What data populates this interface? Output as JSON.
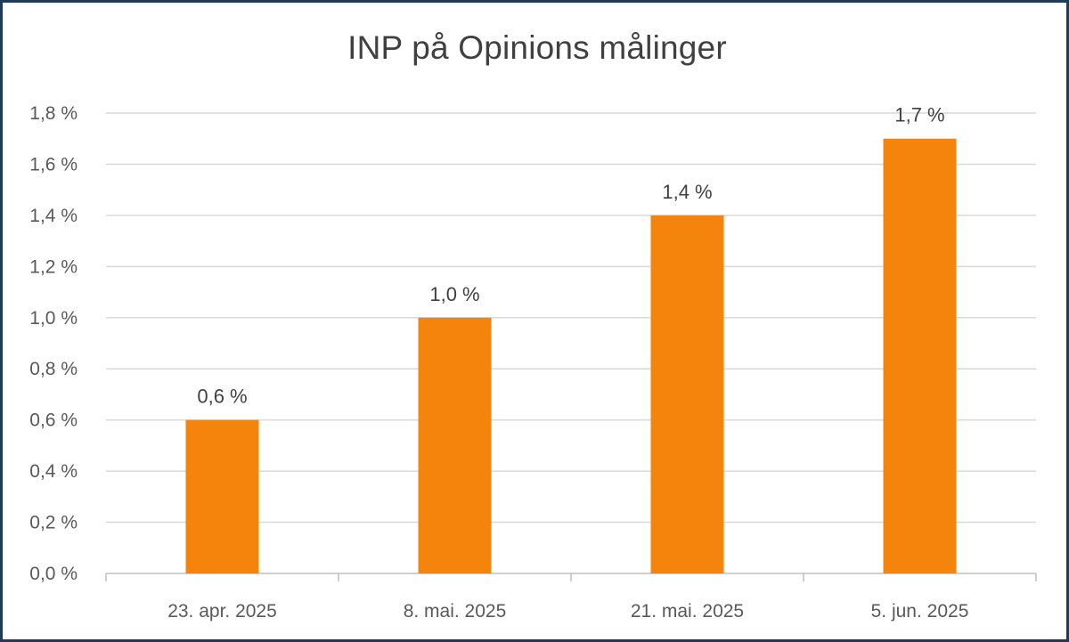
{
  "chart_data": {
    "type": "bar",
    "title": "INP på Opinions målinger",
    "xlabel": "",
    "ylabel": "",
    "categories": [
      "23. apr. 2025",
      "8. mai. 2025",
      "21. mai. 2025",
      "5. jun. 2025"
    ],
    "values": [
      0.6,
      1.0,
      1.4,
      1.7
    ],
    "data_labels": [
      "0,6 %",
      "1,0 %",
      "1,4 %",
      "1,7 %"
    ],
    "ylim": [
      0,
      1.8
    ],
    "yticks": [
      0.0,
      0.2,
      0.4,
      0.6,
      0.8,
      1.0,
      1.2,
      1.4,
      1.6,
      1.8
    ],
    "ytick_labels": [
      "0,0 %",
      "0,2 %",
      "0,4 %",
      "0,6 %",
      "0,8 %",
      "1,0 %",
      "1,2 %",
      "1,4 %",
      "1,6 %",
      "1,8 %"
    ],
    "grid": true,
    "legend": "none",
    "bar_color": "#f5840c",
    "grid_color": "#d9d9d9",
    "frame_color": "#1f3b57"
  }
}
